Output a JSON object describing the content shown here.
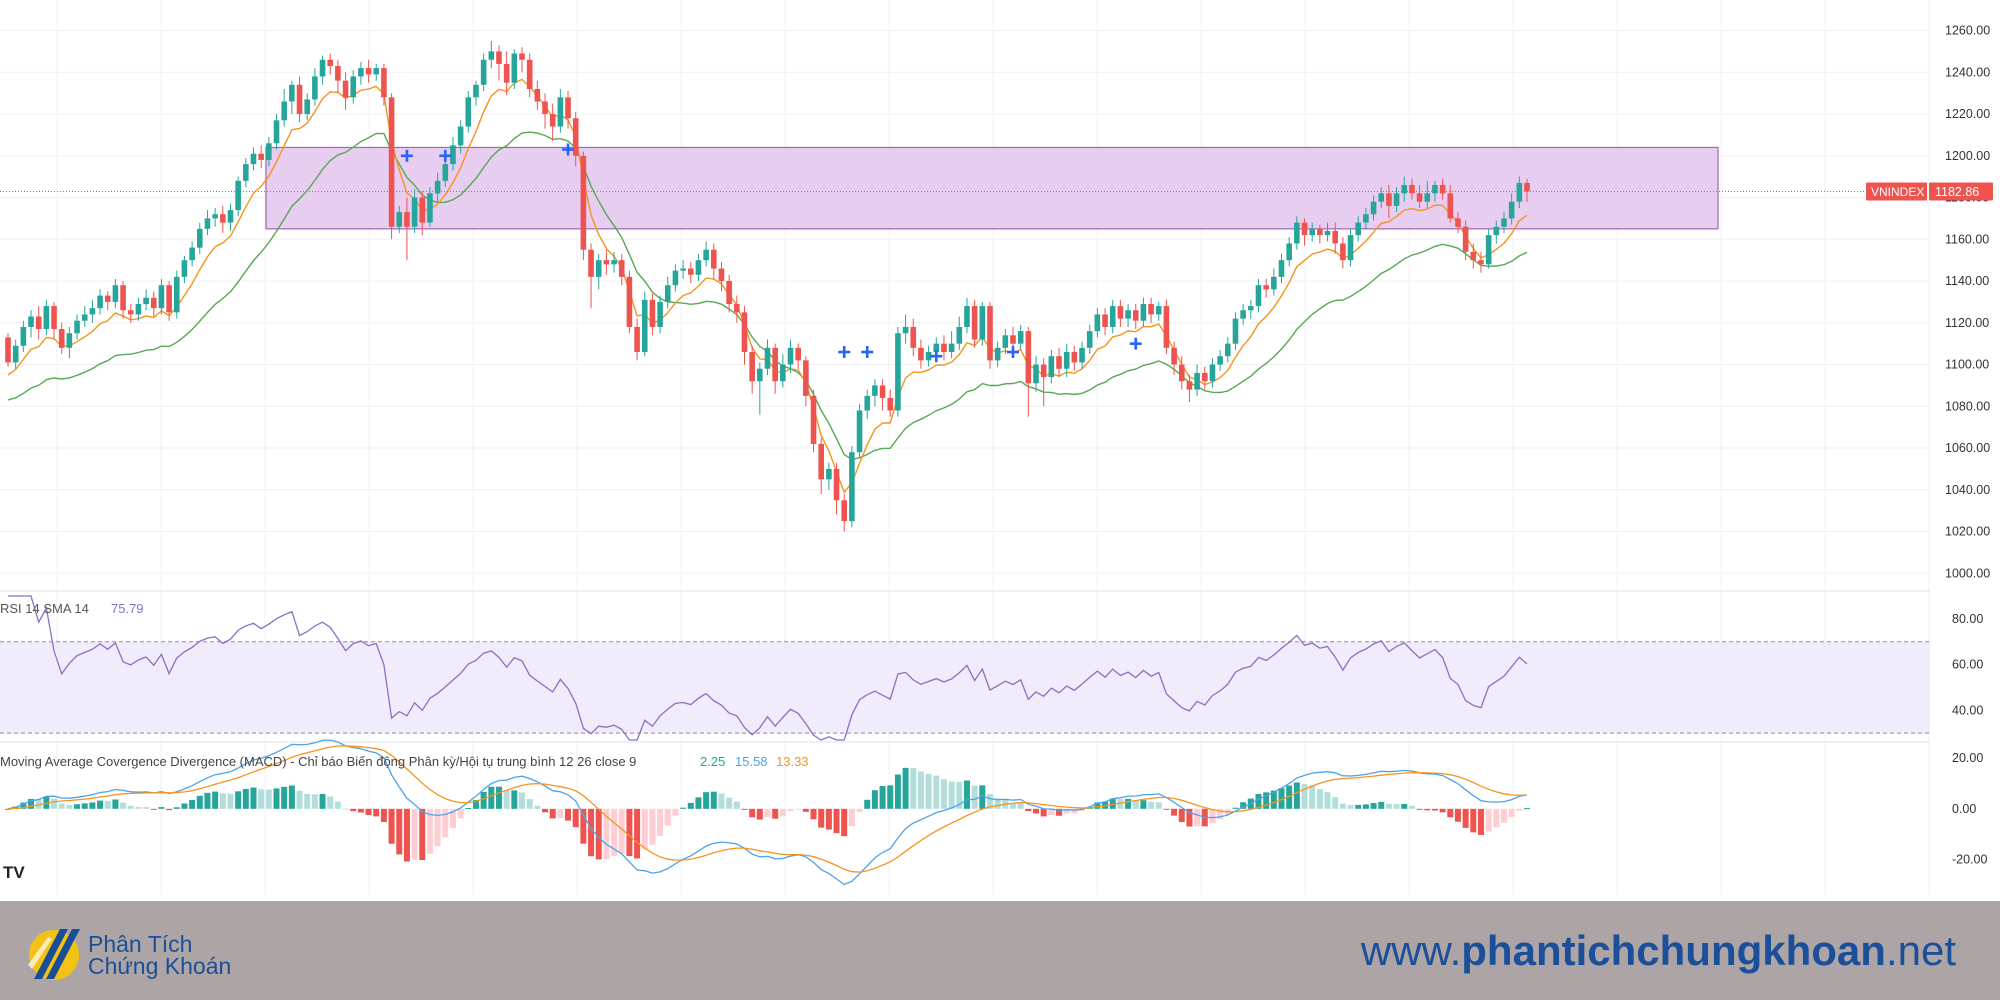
{
  "chart_data": {
    "type": "candlestick",
    "symbol": "VNINDEX",
    "last_price": "1182.86",
    "price_axis": {
      "ticks": [
        "1260.00",
        "1240.00",
        "1220.00",
        "1200.00",
        "1180.00",
        "1160.00",
        "1140.00",
        "1120.00",
        "1100.00",
        "1080.00",
        "1060.00",
        "1040.00",
        "1020.00",
        "1000.00"
      ],
      "range": [
        992,
        1266
      ]
    },
    "resistance_zone": [
      1165,
      1204
    ],
    "candles": [
      [
        1113,
        1101,
        1115,
        1099
      ],
      [
        1101,
        1109,
        1112,
        1098
      ],
      [
        1109,
        1118,
        1121,
        1106
      ],
      [
        1118,
        1123,
        1126,
        1113
      ],
      [
        1123,
        1117,
        1128,
        1112
      ],
      [
        1117,
        1128,
        1131,
        1114
      ],
      [
        1128,
        1117,
        1130,
        1112
      ],
      [
        1117,
        1108,
        1120,
        1105
      ],
      [
        1108,
        1115,
        1118,
        1103
      ],
      [
        1115,
        1121,
        1124,
        1112
      ],
      [
        1121,
        1124,
        1128,
        1118
      ],
      [
        1124,
        1127,
        1131,
        1120
      ],
      [
        1127,
        1133,
        1136,
        1124
      ],
      [
        1133,
        1130,
        1135,
        1126
      ],
      [
        1130,
        1138,
        1141,
        1127
      ],
      [
        1138,
        1126,
        1140,
        1122
      ],
      [
        1126,
        1124,
        1129,
        1120
      ],
      [
        1124,
        1129,
        1132,
        1121
      ],
      [
        1129,
        1132,
        1136,
        1126
      ],
      [
        1132,
        1127,
        1135,
        1123
      ],
      [
        1127,
        1138,
        1141,
        1124
      ],
      [
        1138,
        1125,
        1140,
        1121
      ],
      [
        1125,
        1142,
        1145,
        1122
      ],
      [
        1142,
        1150,
        1152,
        1139
      ],
      [
        1150,
        1156,
        1159,
        1147
      ],
      [
        1156,
        1165,
        1168,
        1153
      ],
      [
        1165,
        1170,
        1174,
        1162
      ],
      [
        1170,
        1172,
        1175,
        1166
      ],
      [
        1172,
        1168,
        1176,
        1163
      ],
      [
        1168,
        1174,
        1177,
        1164
      ],
      [
        1174,
        1188,
        1190,
        1171
      ],
      [
        1188,
        1196,
        1199,
        1185
      ],
      [
        1196,
        1201,
        1204,
        1193
      ],
      [
        1201,
        1198,
        1205,
        1194
      ],
      [
        1198,
        1206,
        1209,
        1195
      ],
      [
        1206,
        1217,
        1220,
        1203
      ],
      [
        1217,
        1226,
        1232,
        1214
      ],
      [
        1226,
        1234,
        1236,
        1220
      ],
      [
        1234,
        1220,
        1238,
        1216
      ],
      [
        1220,
        1227,
        1230,
        1217
      ],
      [
        1227,
        1238,
        1242,
        1224
      ],
      [
        1238,
        1246,
        1248,
        1234
      ],
      [
        1246,
        1243,
        1249,
        1239
      ],
      [
        1243,
        1236,
        1246,
        1230
      ],
      [
        1236,
        1228,
        1240,
        1222
      ],
      [
        1228,
        1238,
        1241,
        1225
      ],
      [
        1238,
        1242,
        1245,
        1234
      ],
      [
        1242,
        1239,
        1246,
        1235
      ],
      [
        1239,
        1242,
        1244,
        1236
      ],
      [
        1242,
        1228,
        1244,
        1224
      ],
      [
        1228,
        1166,
        1230,
        1160
      ],
      [
        1166,
        1173,
        1176,
        1163
      ],
      [
        1173,
        1166,
        1180,
        1150
      ],
      [
        1166,
        1180,
        1184,
        1163
      ],
      [
        1180,
        1168,
        1183,
        1162
      ],
      [
        1168,
        1182,
        1185,
        1166
      ],
      [
        1182,
        1188,
        1192,
        1178
      ],
      [
        1188,
        1196,
        1199,
        1185
      ],
      [
        1196,
        1205,
        1209,
        1193
      ],
      [
        1205,
        1214,
        1217,
        1201
      ],
      [
        1214,
        1228,
        1231,
        1211
      ],
      [
        1228,
        1234,
        1236,
        1224
      ],
      [
        1234,
        1246,
        1249,
        1231
      ],
      [
        1246,
        1250,
        1255,
        1242
      ],
      [
        1250,
        1244,
        1253,
        1236
      ],
      [
        1244,
        1235,
        1250,
        1229
      ],
      [
        1235,
        1249,
        1251,
        1232
      ],
      [
        1249,
        1246,
        1252,
        1240
      ],
      [
        1246,
        1232,
        1249,
        1228
      ],
      [
        1232,
        1226,
        1236,
        1222
      ],
      [
        1226,
        1220,
        1230,
        1213
      ],
      [
        1220,
        1214,
        1225,
        1207
      ],
      [
        1214,
        1228,
        1232,
        1211
      ],
      [
        1228,
        1218,
        1231,
        1213
      ],
      [
        1218,
        1200,
        1221,
        1195
      ],
      [
        1200,
        1155,
        1202,
        1150
      ],
      [
        1155,
        1142,
        1158,
        1127
      ],
      [
        1142,
        1150,
        1153,
        1136
      ],
      [
        1150,
        1148,
        1155,
        1143
      ],
      [
        1148,
        1150,
        1154,
        1144
      ],
      [
        1150,
        1142,
        1153,
        1138
      ],
      [
        1142,
        1118,
        1145,
        1115
      ],
      [
        1118,
        1106,
        1122,
        1102
      ],
      [
        1106,
        1131,
        1135,
        1104
      ],
      [
        1131,
        1118,
        1134,
        1114
      ],
      [
        1118,
        1130,
        1133,
        1115
      ],
      [
        1130,
        1138,
        1142,
        1127
      ],
      [
        1138,
        1145,
        1148,
        1135
      ],
      [
        1145,
        1146,
        1150,
        1141
      ],
      [
        1146,
        1143,
        1149,
        1139
      ],
      [
        1143,
        1150,
        1153,
        1140
      ],
      [
        1150,
        1155,
        1159,
        1147
      ],
      [
        1155,
        1146,
        1158,
        1141
      ],
      [
        1146,
        1140,
        1149,
        1135
      ],
      [
        1140,
        1129,
        1143,
        1125
      ],
      [
        1129,
        1125,
        1133,
        1120
      ],
      [
        1125,
        1106,
        1128,
        1100
      ],
      [
        1106,
        1092,
        1109,
        1086
      ],
      [
        1092,
        1098,
        1101,
        1076
      ],
      [
        1098,
        1108,
        1112,
        1095
      ],
      [
        1108,
        1092,
        1110,
        1086
      ],
      [
        1092,
        1100,
        1105,
        1089
      ],
      [
        1100,
        1108,
        1112,
        1096
      ],
      [
        1108,
        1102,
        1110,
        1098
      ],
      [
        1102,
        1085,
        1104,
        1080
      ],
      [
        1085,
        1062,
        1088,
        1058
      ],
      [
        1062,
        1045,
        1065,
        1038
      ],
      [
        1045,
        1050,
        1053,
        1040
      ],
      [
        1050,
        1035,
        1053,
        1028
      ],
      [
        1035,
        1025,
        1038,
        1020
      ],
      [
        1025,
        1058,
        1061,
        1022
      ],
      [
        1058,
        1078,
        1081,
        1055
      ],
      [
        1078,
        1085,
        1088,
        1074
      ],
      [
        1085,
        1090,
        1093,
        1080
      ],
      [
        1090,
        1084,
        1093,
        1078
      ],
      [
        1084,
        1078,
        1088,
        1075
      ],
      [
        1078,
        1115,
        1118,
        1075
      ],
      [
        1115,
        1118,
        1124,
        1110
      ],
      [
        1118,
        1108,
        1122,
        1104
      ],
      [
        1108,
        1102,
        1112,
        1098
      ],
      [
        1102,
        1106,
        1109,
        1099
      ],
      [
        1106,
        1110,
        1113,
        1103
      ],
      [
        1110,
        1106,
        1114,
        1102
      ],
      [
        1106,
        1110,
        1116,
        1103
      ],
      [
        1110,
        1118,
        1123,
        1107
      ],
      [
        1118,
        1128,
        1132,
        1115
      ],
      [
        1128,
        1112,
        1131,
        1108
      ],
      [
        1112,
        1128,
        1130,
        1109
      ],
      [
        1128,
        1102,
        1130,
        1098
      ],
      [
        1102,
        1108,
        1111,
        1099
      ],
      [
        1108,
        1114,
        1117,
        1105
      ],
      [
        1114,
        1110,
        1118,
        1106
      ],
      [
        1110,
        1116,
        1119,
        1107
      ],
      [
        1116,
        1091,
        1118,
        1075
      ],
      [
        1091,
        1100,
        1104,
        1087
      ],
      [
        1100,
        1094,
        1103,
        1080
      ],
      [
        1094,
        1104,
        1107,
        1091
      ],
      [
        1104,
        1098,
        1108,
        1094
      ],
      [
        1098,
        1106,
        1110,
        1094
      ],
      [
        1106,
        1101,
        1109,
        1097
      ],
      [
        1101,
        1108,
        1111,
        1098
      ],
      [
        1108,
        1116,
        1119,
        1105
      ],
      [
        1116,
        1124,
        1127,
        1113
      ],
      [
        1124,
        1118,
        1127,
        1114
      ],
      [
        1118,
        1128,
        1131,
        1115
      ],
      [
        1128,
        1122,
        1131,
        1118
      ],
      [
        1122,
        1126,
        1129,
        1118
      ],
      [
        1126,
        1121,
        1129,
        1117
      ],
      [
        1121,
        1129,
        1132,
        1118
      ],
      [
        1129,
        1124,
        1132,
        1120
      ],
      [
        1124,
        1128,
        1130,
        1121
      ],
      [
        1128,
        1108,
        1131,
        1105
      ],
      [
        1108,
        1100,
        1111,
        1095
      ],
      [
        1100,
        1092,
        1104,
        1088
      ],
      [
        1092,
        1088,
        1095,
        1082
      ],
      [
        1088,
        1096,
        1100,
        1085
      ],
      [
        1096,
        1092,
        1099,
        1088
      ],
      [
        1092,
        1100,
        1103,
        1089
      ],
      [
        1100,
        1104,
        1107,
        1097
      ],
      [
        1104,
        1110,
        1113,
        1101
      ],
      [
        1110,
        1122,
        1125,
        1107
      ],
      [
        1122,
        1126,
        1129,
        1119
      ],
      [
        1126,
        1128,
        1131,
        1122
      ],
      [
        1128,
        1138,
        1141,
        1125
      ],
      [
        1138,
        1136,
        1141,
        1132
      ],
      [
        1136,
        1142,
        1146,
        1133
      ],
      [
        1142,
        1150,
        1153,
        1139
      ],
      [
        1150,
        1158,
        1161,
        1147
      ],
      [
        1158,
        1168,
        1171,
        1155
      ],
      [
        1168,
        1162,
        1170,
        1157
      ],
      [
        1162,
        1165,
        1168,
        1159
      ],
      [
        1165,
        1162,
        1167,
        1158
      ],
      [
        1162,
        1164,
        1168,
        1159
      ],
      [
        1164,
        1158,
        1168,
        1153
      ],
      [
        1158,
        1150,
        1161,
        1146
      ],
      [
        1150,
        1162,
        1165,
        1147
      ],
      [
        1162,
        1168,
        1171,
        1159
      ],
      [
        1168,
        1172,
        1175,
        1165
      ],
      [
        1172,
        1178,
        1181,
        1169
      ],
      [
        1178,
        1182,
        1185,
        1175
      ],
      [
        1182,
        1176,
        1186,
        1170
      ],
      [
        1176,
        1182,
        1185,
        1173
      ],
      [
        1182,
        1186,
        1190,
        1178
      ],
      [
        1186,
        1182,
        1189,
        1179
      ],
      [
        1182,
        1178,
        1186,
        1175
      ],
      [
        1178,
        1182,
        1188,
        1175
      ],
      [
        1182,
        1186,
        1188,
        1178
      ],
      [
        1186,
        1182,
        1189,
        1179
      ],
      [
        1182,
        1170,
        1186,
        1168
      ],
      [
        1170,
        1166,
        1173,
        1163
      ],
      [
        1166,
        1154,
        1169,
        1150
      ],
      [
        1154,
        1150,
        1158,
        1146
      ],
      [
        1150,
        1148,
        1154,
        1144
      ],
      [
        1148,
        1162,
        1165,
        1146
      ],
      [
        1162,
        1166,
        1169,
        1158
      ],
      [
        1166,
        1170,
        1173,
        1163
      ],
      [
        1170,
        1178,
        1182,
        1167
      ],
      [
        1178,
        1187,
        1190,
        1175
      ],
      [
        1187,
        1183,
        1189,
        1178
      ]
    ],
    "markers": [
      {
        "index": 52,
        "price": 1200
      },
      {
        "index": 57,
        "price": 1200
      },
      {
        "index": 73,
        "price": 1203
      },
      {
        "index": 109,
        "price": 1106
      },
      {
        "index": 112,
        "price": 1106
      },
      {
        "index": 121,
        "price": 1104
      },
      {
        "index": 131,
        "price": 1106
      },
      {
        "index": 147,
        "price": 1110
      }
    ],
    "rsi": {
      "label": "RSI 14 SMA 14",
      "value": "75.79",
      "ticks": [
        "80.00",
        "60.00",
        "40.00"
      ],
      "bands": [
        70,
        30
      ],
      "range": [
        27,
        90
      ]
    },
    "macd": {
      "label": "Moving Average Covergence Divergence (MACD) - Chỉ báo Biến động Phân kỳ/Hội tụ trung bình 12 26 close 9",
      "values": [
        "2.25",
        "15.58",
        "13.33"
      ],
      "ticks": [
        "20.00",
        "0.00",
        "-20.00"
      ],
      "range": [
        -34,
        24
      ]
    },
    "colors": {
      "up": "#26a69a",
      "down": "#ef5350",
      "ema_fast": "#f7931e",
      "ema_slow": "#56a954",
      "zone": "#e7cdf0",
      "zone_stroke": "#a466b4",
      "rsi": "#8b6fc0",
      "macd_line": "#4da3e8",
      "signal_line": "#f7931e"
    }
  },
  "footer": {
    "logo_line1": "Phân Tích",
    "logo_line2": "Chứng Khoán",
    "site_prefix": "www.",
    "site_bold": "phantichchungkhoan",
    "site_suffix": ".net"
  },
  "watermark": "TV"
}
